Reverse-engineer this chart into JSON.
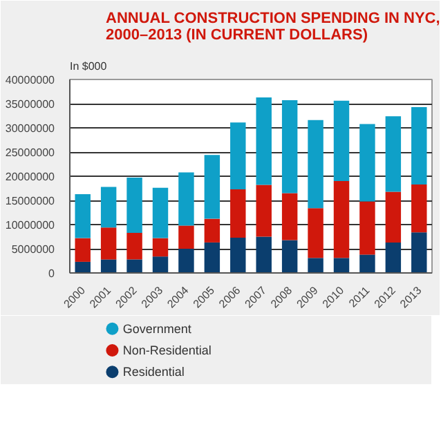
{
  "chart_data": {
    "type": "bar",
    "stacked": true,
    "title": "ANNUAL CONSTRUCTION SPENDING IN NYC,\n2000–2013 (IN CURRENT DOLLARS)",
    "ylabel": "In $000",
    "categories": [
      "2000",
      "2001",
      "2002",
      "2003",
      "2004",
      "2005",
      "2006",
      "2007",
      "2008",
      "2009",
      "2010",
      "2011",
      "2012",
      "2013"
    ],
    "series": [
      {
        "name": "Residential",
        "color": "#0b3e6e",
        "values": [
          2300000,
          2800000,
          2800000,
          3400000,
          5000000,
          6300000,
          7300000,
          7500000,
          6800000,
          3100000,
          3100000,
          3800000,
          6300000,
          8400000
        ]
      },
      {
        "name": "Non-Residential",
        "color": "#d0180c",
        "values": [
          4900000,
          6600000,
          5500000,
          3800000,
          4800000,
          4900000,
          10000000,
          10700000,
          9700000,
          10300000,
          15900000,
          11000000,
          10500000,
          9900000
        ]
      },
      {
        "name": "Government",
        "color": "#0fa0c8",
        "values": [
          9100000,
          8400000,
          11400000,
          10400000,
          11000000,
          13200000,
          13800000,
          18100000,
          19200000,
          18200000,
          16600000,
          16000000,
          15600000,
          16000000
        ]
      }
    ],
    "ylim": [
      0,
      40000000
    ],
    "yticks": [
      0,
      5000000,
      10000000,
      15000000,
      20000000,
      25000000,
      30000000,
      35000000,
      40000000
    ],
    "grid": "y",
    "legend": "bottom left"
  }
}
